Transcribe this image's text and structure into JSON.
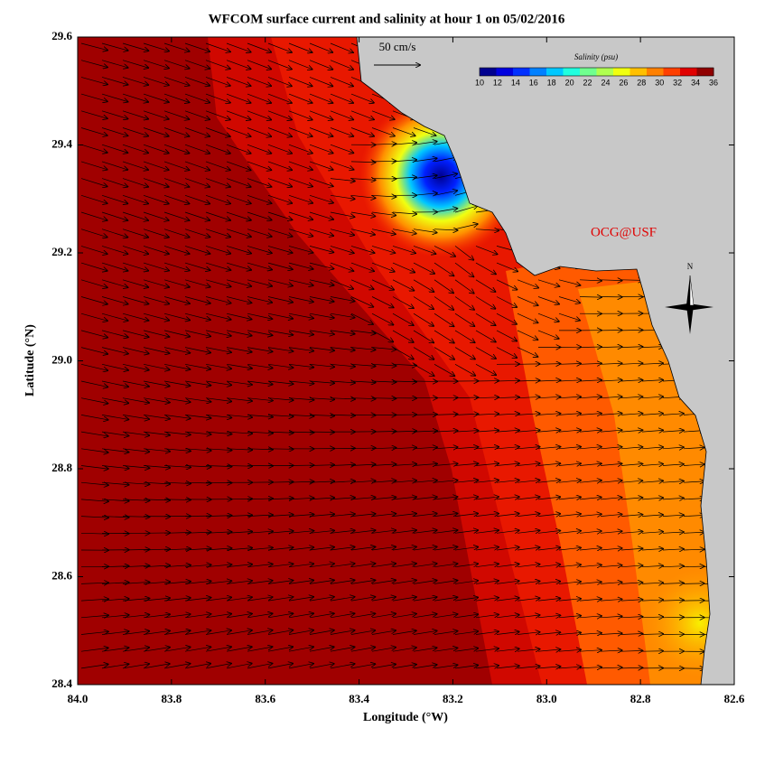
{
  "chart_data": {
    "type": "map",
    "title": "WFCOM surface current and salinity at hour 1 on 05/02/2016",
    "x_label": "Longitude (°W)",
    "y_label": "Latitude (°N)",
    "xlim": [
      84.0,
      82.6
    ],
    "xticks": [
      {
        "value": 84.0,
        "label": "84.0"
      },
      83.8,
      83.6,
      83.4,
      83.2,
      {
        "value": 83.0,
        "label": "83.0"
      },
      82.8,
      82.6
    ],
    "ylim": [
      28.4,
      29.6
    ],
    "yticks": [
      28.4,
      28.6,
      28.8,
      {
        "value": 29.0,
        "label": "29.0"
      },
      29.2,
      29.4,
      29.6
    ],
    "vector_scale_label": "50 cm/s",
    "colorbar": {
      "title": "Salinity (psu)",
      "ticks": [
        10,
        12,
        14,
        16,
        18,
        20,
        22,
        24,
        26,
        28,
        30,
        32,
        34,
        36
      ],
      "colors": [
        "#00008f",
        "#0000df",
        "#0030ff",
        "#0080ff",
        "#00c8ff",
        "#20ffdf",
        "#70ff8f",
        "#b0ff50",
        "#f0ff10",
        "#ffc000",
        "#ff8000",
        "#ff4000",
        "#e00000",
        "#900000"
      ]
    },
    "annotation": "OCG@USF",
    "compass_label": "N"
  }
}
